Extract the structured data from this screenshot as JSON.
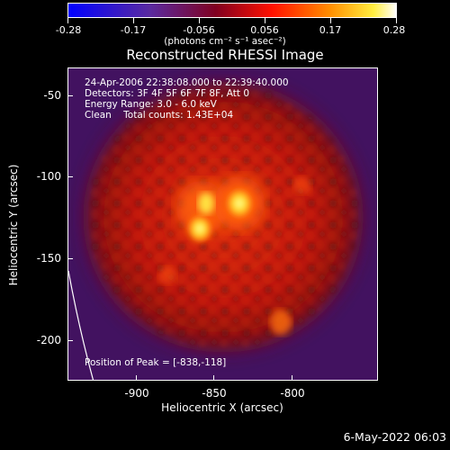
{
  "colorbar": {
    "tick_labels": [
      "-0.28",
      "-0.17",
      "-0.056",
      "0.056",
      "0.17",
      "0.28"
    ],
    "units_label": "(photons cm⁻² s⁻¹ asec⁻²)"
  },
  "title": "Reconstructed RHESSI Image",
  "info": {
    "time_range": "24-Apr-2006 22:38:08.000 to 22:39:40.000",
    "detectors": "Detectors: 3F 4F 5F 6F 7F 8F, Att 0",
    "energy": "Energy Range: 3.0 - 6.0 keV",
    "method": "Clean    Total counts: 1.43E+04",
    "peak": "Position of Peak = [-838,-118]"
  },
  "axes": {
    "xlabel": "Heliocentric X (arcsec)",
    "ylabel": "Heliocentric Y (arcsec)",
    "xticks": [
      "-900",
      "-850",
      "-800"
    ],
    "yticks": [
      "-50",
      "-100",
      "-150",
      "-200"
    ]
  },
  "timestamp": "6-May-2022 06:03",
  "colors": {
    "background": "#000000",
    "limb": "#ffffff",
    "colormap": [
      "#0000ff",
      "#4b0082",
      "#800000",
      "#ff0000",
      "#ff8000",
      "#ffff00",
      "#ffffff"
    ]
  }
}
